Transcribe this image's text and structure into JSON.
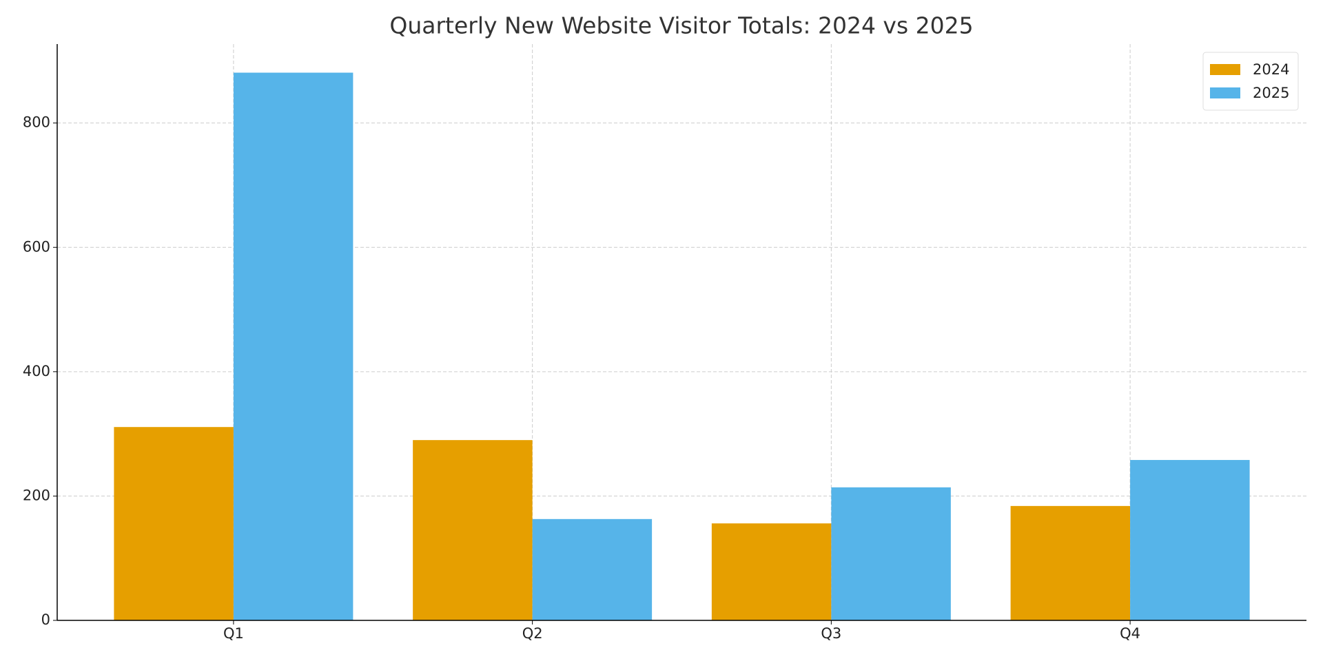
{
  "chart_data": {
    "type": "bar",
    "title": "Quarterly New Website Visitor Totals: 2024 vs 2025",
    "categories": [
      "Q1",
      "Q2",
      "Q3",
      "Q4"
    ],
    "series": [
      {
        "name": "2024",
        "color": "#e69f00",
        "values": [
          311,
          290,
          156,
          184
        ]
      },
      {
        "name": "2025",
        "color": "#56b4e9",
        "values": [
          881,
          163,
          214,
          258
        ]
      }
    ],
    "ylim": [
      0,
      927
    ],
    "yticks": [
      0,
      200,
      400,
      600,
      800
    ],
    "grid": true,
    "legend": "upper right"
  }
}
